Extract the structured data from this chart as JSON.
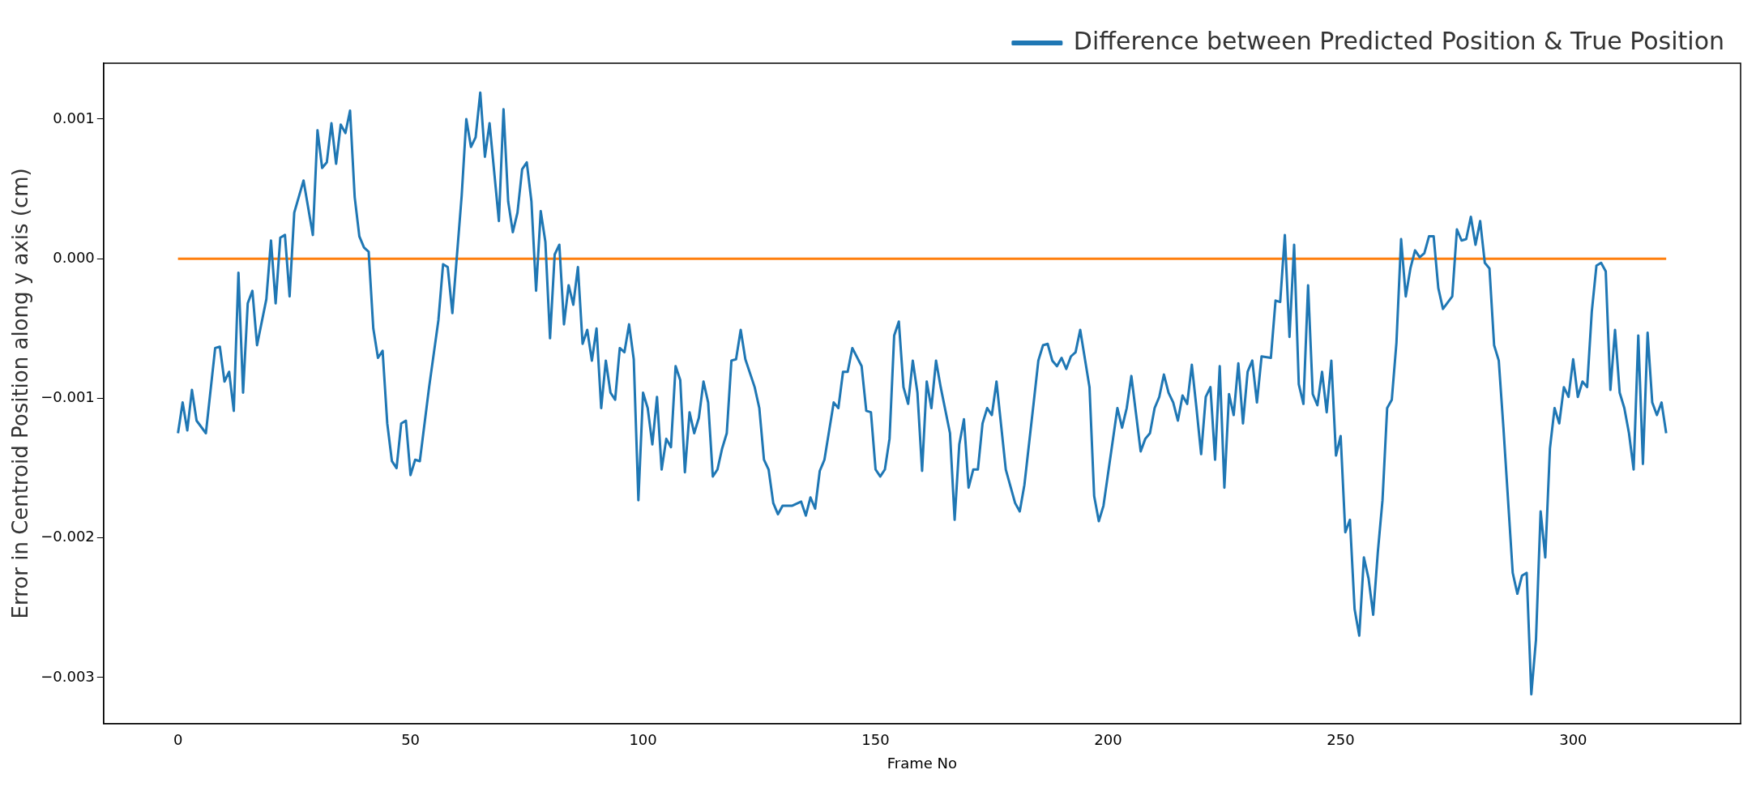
{
  "chart_data": {
    "type": "line",
    "xlabel": "Frame No",
    "ylabel": "Error in Centroid Position along y axis (cm)",
    "series": [
      {
        "name": "Difference between Predicted Position & True Position",
        "color": "#1f77b4",
        "x": [
          0,
          1,
          2,
          3,
          4,
          6,
          8,
          9,
          10,
          11,
          12,
          13,
          14,
          15,
          16,
          17,
          19,
          20,
          21,
          22,
          23,
          24,
          25,
          27,
          29,
          30,
          31,
          32,
          33,
          34,
          35,
          36,
          37,
          38,
          39,
          40,
          41,
          42,
          43,
          44,
          45,
          46,
          47,
          48,
          49,
          50,
          51,
          52,
          54,
          56,
          57,
          58,
          59,
          61,
          62,
          63,
          64,
          65,
          66,
          67,
          69,
          70,
          71,
          72,
          73,
          74,
          75,
          76,
          77,
          78,
          79,
          80,
          81,
          82,
          83,
          84,
          85,
          86,
          87,
          88,
          89,
          90,
          91,
          92,
          93,
          94,
          95,
          96,
          97,
          98,
          99,
          100,
          101,
          102,
          103,
          104,
          105,
          106,
          107,
          108,
          109,
          110,
          111,
          112,
          113,
          114,
          115,
          116,
          117,
          118,
          119,
          120,
          121,
          122,
          124,
          125,
          126,
          127,
          128,
          129,
          130,
          132,
          134,
          135,
          136,
          137,
          138,
          139,
          141,
          142,
          143,
          144,
          145,
          147,
          148,
          149,
          150,
          151,
          152,
          153,
          154,
          155,
          156,
          157,
          158,
          159,
          160,
          161,
          162,
          163,
          164,
          166,
          167,
          168,
          169,
          170,
          171,
          172,
          173,
          174,
          175,
          176,
          178,
          180,
          181,
          182,
          184,
          185,
          186,
          187,
          188,
          189,
          190,
          191,
          192,
          193,
          194,
          196,
          197,
          198,
          199,
          202,
          203,
          204,
          205,
          207,
          208,
          209,
          210,
          211,
          212,
          213,
          214,
          215,
          216,
          217,
          218,
          219,
          220,
          221,
          222,
          223,
          224,
          225,
          226,
          227,
          228,
          229,
          230,
          231,
          232,
          233,
          235,
          236,
          237,
          238,
          239,
          240,
          241,
          242,
          243,
          244,
          245,
          246,
          247,
          248,
          249,
          250,
          251,
          252,
          253,
          254,
          255,
          256,
          257,
          258,
          259,
          260,
          261,
          262,
          263,
          264,
          265,
          266,
          267,
          268,
          269,
          270,
          271,
          272,
          274,
          275,
          276,
          277,
          278,
          279,
          280,
          281,
          282,
          283,
          284,
          285,
          287,
          288,
          289,
          290,
          291,
          292,
          293,
          294,
          295,
          296,
          297,
          298,
          299,
          300,
          301,
          302,
          303,
          304,
          305,
          306,
          307,
          308,
          309,
          310,
          311,
          312,
          313,
          314,
          315,
          316,
          317,
          318,
          319,
          320
        ],
        "values": [
          -0.00125,
          -0.00103,
          -0.00123,
          -0.00094,
          -0.00116,
          -0.00125,
          -0.00064,
          -0.00063,
          -0.00088,
          -0.00081,
          -0.00109,
          -0.0001,
          -0.00096,
          -0.00032,
          -0.00023,
          -0.00062,
          -0.00029,
          0.00013,
          -0.00032,
          0.00015,
          0.00017,
          -0.00027,
          0.00033,
          0.00056,
          0.00017,
          0.00092,
          0.00065,
          0.00069,
          0.00097,
          0.00068,
          0.00096,
          0.0009,
          0.00106,
          0.00044,
          0.00016,
          8e-05,
          5e-05,
          -0.0005,
          -0.00071,
          -0.00066,
          -0.00118,
          -0.00145,
          -0.0015,
          -0.00118,
          -0.00116,
          -0.00155,
          -0.00144,
          -0.00145,
          -0.00092,
          -0.00044,
          -4e-05,
          -6e-05,
          -0.00039,
          0.00045,
          0.001,
          0.0008,
          0.00087,
          0.00119,
          0.00073,
          0.00097,
          0.00027,
          0.00107,
          0.00041,
          0.00019,
          0.00033,
          0.00064,
          0.00069,
          0.00041,
          -0.00023,
          0.00034,
          0.00012,
          -0.00057,
          3e-05,
          0.0001,
          -0.00047,
          -0.00019,
          -0.00033,
          -6e-05,
          -0.00061,
          -0.00051,
          -0.00073,
          -0.0005,
          -0.00107,
          -0.00073,
          -0.00096,
          -0.00101,
          -0.00064,
          -0.00067,
          -0.00047,
          -0.00072,
          -0.00173,
          -0.00096,
          -0.00107,
          -0.00133,
          -0.00099,
          -0.00151,
          -0.00129,
          -0.00135,
          -0.00077,
          -0.00087,
          -0.00153,
          -0.0011,
          -0.00125,
          -0.00114,
          -0.00088,
          -0.00103,
          -0.00156,
          -0.00151,
          -0.00136,
          -0.00125,
          -0.00073,
          -0.00072,
          -0.00051,
          -0.00072,
          -0.00092,
          -0.00107,
          -0.00144,
          -0.00151,
          -0.00175,
          -0.00183,
          -0.00177,
          -0.00177,
          -0.00174,
          -0.00184,
          -0.00171,
          -0.00179,
          -0.00152,
          -0.00144,
          -0.00103,
          -0.00107,
          -0.00081,
          -0.00081,
          -0.00064,
          -0.00077,
          -0.00109,
          -0.0011,
          -0.00151,
          -0.00156,
          -0.00151,
          -0.00129,
          -0.00055,
          -0.00045,
          -0.00092,
          -0.00104,
          -0.00073,
          -0.00096,
          -0.00152,
          -0.00088,
          -0.00107,
          -0.00073,
          -0.00092,
          -0.00125,
          -0.00187,
          -0.00133,
          -0.00115,
          -0.00164,
          -0.00151,
          -0.00151,
          -0.00118,
          -0.00107,
          -0.00112,
          -0.00088,
          -0.00151,
          -0.00175,
          -0.00181,
          -0.00162,
          -0.00103,
          -0.00073,
          -0.00062,
          -0.00061,
          -0.00073,
          -0.00077,
          -0.00071,
          -0.00079,
          -0.0007,
          -0.00067,
          -0.00051,
          -0.00092,
          -0.0017,
          -0.00188,
          -0.00177,
          -0.00107,
          -0.00121,
          -0.00107,
          -0.00084,
          -0.00138,
          -0.00129,
          -0.00125,
          -0.00107,
          -0.00099,
          -0.00083,
          -0.00096,
          -0.00103,
          -0.00116,
          -0.00098,
          -0.00104,
          -0.00076,
          -0.00107,
          -0.0014,
          -0.00099,
          -0.00092,
          -0.00144,
          -0.00077,
          -0.00164,
          -0.00097,
          -0.00112,
          -0.00075,
          -0.00118,
          -0.00081,
          -0.00073,
          -0.00103,
          -0.0007,
          -0.00071,
          -0.0003,
          -0.00031,
          0.00017,
          -0.00056,
          0.0001,
          -0.0009,
          -0.00104,
          -0.00019,
          -0.00097,
          -0.00105,
          -0.00081,
          -0.0011,
          -0.00073,
          -0.00141,
          -0.00127,
          -0.00196,
          -0.00187,
          -0.00251,
          -0.0027,
          -0.00214,
          -0.00229,
          -0.00255,
          -0.0021,
          -0.00173,
          -0.00107,
          -0.00101,
          -0.0006,
          0.00014,
          -0.00027,
          -7e-05,
          6e-05,
          1e-05,
          4e-05,
          0.00016,
          0.00016,
          -0.00021,
          -0.00036,
          -0.00027,
          0.00021,
          0.00013,
          0.00014,
          0.0003,
          0.0001,
          0.00027,
          -3e-05,
          -7e-05,
          -0.00062,
          -0.00073,
          -0.00121,
          -0.00225,
          -0.0024,
          -0.00227,
          -0.00225,
          -0.00312,
          -0.00273,
          -0.00181,
          -0.00214,
          -0.00136,
          -0.00107,
          -0.00118,
          -0.00092,
          -0.00099,
          -0.00072,
          -0.00099,
          -0.00088,
          -0.00092,
          -0.00038,
          -5e-05,
          -3e-05,
          -9e-05,
          -0.00094,
          -0.00051,
          -0.00096,
          -0.00107,
          -0.00125,
          -0.00151,
          -0.00055,
          -0.00147,
          -0.00053,
          -0.00103,
          -0.00112,
          -0.00103,
          -0.00125
        ]
      },
      {
        "color": "#ff7f0e",
        "x": [
          0,
          320
        ],
        "values": [
          0,
          0
        ]
      }
    ],
    "xlim": [
      -16,
      336
    ],
    "xticks": [
      0,
      50,
      100,
      150,
      200,
      250,
      300
    ],
    "ylim": [
      -0.00333,
      0.0014
    ],
    "yticks": [
      {
        "value": -0.003,
        "label": "−0.003"
      },
      {
        "value": -0.002,
        "label": "−0.002"
      },
      {
        "value": -0.001,
        "label": "−0.001"
      },
      {
        "value": 0,
        "label": "0.000"
      },
      {
        "value": 0.001,
        "label": "0.001"
      }
    ],
    "legend": "top right",
    "grid": false,
    "marker": "none",
    "line_style": "solid"
  }
}
